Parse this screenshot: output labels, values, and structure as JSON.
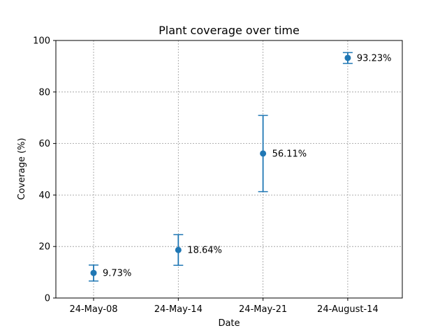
{
  "chart_data": {
    "type": "scatter",
    "title": "Plant coverage over time",
    "xlabel": "Date",
    "ylabel": "Coverage (%)",
    "categories": [
      "24-May-08",
      "24-May-14",
      "24-May-21",
      "24-August-14"
    ],
    "values": [
      9.73,
      18.64,
      56.11,
      93.23
    ],
    "error_low": [
      6.6,
      12.7,
      41.3,
      91.1
    ],
    "error_high": [
      12.8,
      24.6,
      70.9,
      95.3
    ],
    "data_labels": [
      "9.73%",
      "18.64%",
      "56.11%",
      "93.23%"
    ],
    "ylim": [
      0,
      100
    ],
    "yticks": [
      0,
      20,
      40,
      60,
      80,
      100
    ],
    "grid": true,
    "color": "#1f77b4"
  }
}
